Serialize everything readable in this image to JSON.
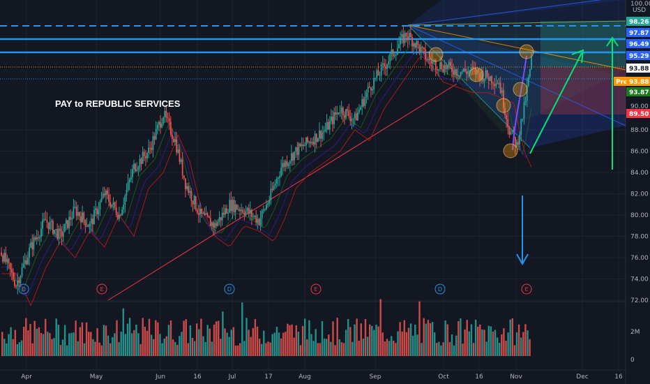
{
  "chart_data": {
    "type": "candlestick",
    "annotation": "PAY to REPUBLIC SERVICES",
    "currency": "USD",
    "price_axis_ticks": [
      72.0,
      74.0,
      76.0,
      78.0,
      80.0,
      82.0,
      84.0,
      86.0,
      88.0
    ],
    "partial_ticks": [
      "100.00",
      "90.00"
    ],
    "volume_axis_ticks": [
      "2M",
      "0"
    ],
    "x_ticks": [
      "Apr",
      "May",
      "Jun",
      "16",
      "Jul",
      "17",
      "Aug",
      "Sep",
      "Oct",
      "16",
      "Nov",
      "Dec",
      "16"
    ],
    "price_tags": [
      {
        "value": "98.26",
        "color": "#26a69a",
        "fg": "#ffffff"
      },
      {
        "value": "97.87",
        "color": "#2962ff",
        "fg": "#ffffff"
      },
      {
        "value": "96.49",
        "color": "#2962ff",
        "fg": "#ffffff"
      },
      {
        "value": "95.29",
        "color": "#2962ff",
        "fg": "#ffffff"
      },
      {
        "value": "93.88",
        "color": "#ffffff",
        "fg": "#131722"
      },
      {
        "value": "93.88",
        "color": "#ff9800",
        "fg": "#ffffff",
        "prefix": "Pre"
      },
      {
        "value": "93.87",
        "color": "#1b7a1b",
        "fg": "#ffffff"
      },
      {
        "value": "89.50",
        "color": "#f23645",
        "fg": "#ffffff"
      }
    ],
    "events": [
      {
        "label": "D",
        "month_pos": "Apr"
      },
      {
        "label": "E",
        "month_pos": "May"
      },
      {
        "label": "D",
        "month_pos": "Jul"
      },
      {
        "label": "E",
        "month_pos": "Aug"
      },
      {
        "label": "D",
        "month_pos": "Oct"
      },
      {
        "label": "E",
        "month_pos": "Nov"
      }
    ],
    "price_path": [
      [
        0,
        76.5
      ],
      [
        10,
        73.5
      ],
      [
        20,
        77.0
      ],
      [
        30,
        79.5
      ],
      [
        40,
        78.0
      ],
      [
        50,
        80.5
      ],
      [
        60,
        79.0
      ],
      [
        70,
        82.0
      ],
      [
        80,
        80.0
      ],
      [
        90,
        84.5
      ],
      [
        100,
        86.0
      ],
      [
        110,
        89.5
      ],
      [
        118,
        87.0
      ],
      [
        125,
        83.0
      ],
      [
        135,
        80.0
      ],
      [
        145,
        79.0
      ],
      [
        155,
        81.0
      ],
      [
        165,
        80.5
      ],
      [
        175,
        79.5
      ],
      [
        182,
        81.5
      ],
      [
        190,
        84.5
      ],
      [
        200,
        86.0
      ],
      [
        210,
        87.0
      ],
      [
        220,
        88.0
      ],
      [
        230,
        90.0
      ],
      [
        240,
        89.0
      ],
      [
        250,
        92.0
      ],
      [
        260,
        94.0
      ],
      [
        270,
        96.0
      ],
      [
        275,
        97.0
      ],
      [
        282,
        96.0
      ],
      [
        290,
        94.5
      ],
      [
        300,
        94.0
      ],
      [
        310,
        93.5
      ],
      [
        320,
        93.5
      ],
      [
        330,
        93.0
      ],
      [
        338,
        92.5
      ],
      [
        345,
        88.0
      ],
      [
        350,
        86.5
      ],
      [
        355,
        90.0
      ],
      [
        360,
        94.5
      ]
    ],
    "levels": [
      98.26,
      97.87,
      96.49,
      95.29,
      93.88
    ],
    "grid": true
  }
}
